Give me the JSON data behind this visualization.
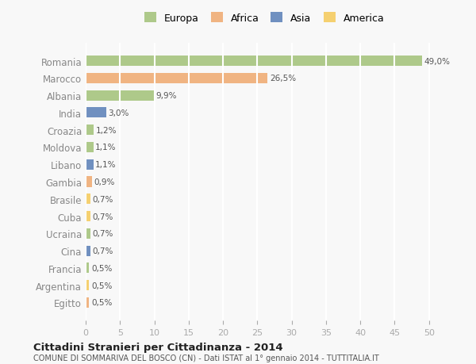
{
  "countries": [
    "Romania",
    "Marocco",
    "Albania",
    "India",
    "Croazia",
    "Moldova",
    "Libano",
    "Gambia",
    "Brasile",
    "Cuba",
    "Ucraina",
    "Cina",
    "Francia",
    "Argentina",
    "Egitto"
  ],
  "values": [
    49.0,
    26.5,
    9.9,
    3.0,
    1.2,
    1.1,
    1.1,
    0.9,
    0.7,
    0.7,
    0.7,
    0.7,
    0.5,
    0.5,
    0.5
  ],
  "labels": [
    "49,0%",
    "26,5%",
    "9,9%",
    "3,0%",
    "1,2%",
    "1,1%",
    "1,1%",
    "0,9%",
    "0,7%",
    "0,7%",
    "0,7%",
    "0,7%",
    "0,5%",
    "0,5%",
    "0,5%"
  ],
  "colors": [
    "#aec98a",
    "#f0b482",
    "#aec98a",
    "#7090c0",
    "#aec98a",
    "#aec98a",
    "#7090c0",
    "#f0b482",
    "#f5d070",
    "#f5d070",
    "#aec98a",
    "#7090c0",
    "#aec98a",
    "#f5d070",
    "#f0b482"
  ],
  "categories": [
    "Europa",
    "Africa",
    "Asia",
    "America"
  ],
  "legend_colors": [
    "#aec98a",
    "#f0b482",
    "#7090c0",
    "#f5d070"
  ],
  "title": "Cittadini Stranieri per Cittadinanza - 2014",
  "subtitle": "COMUNE DI SOMMARIVA DEL BOSCO (CN) - Dati ISTAT al 1° gennaio 2014 - TUTTITALIA.IT",
  "xlim": [
    0,
    52
  ],
  "xticks": [
    0,
    5,
    10,
    15,
    20,
    25,
    30,
    35,
    40,
    45,
    50
  ],
  "background_color": "#f8f8f8",
  "grid_color": "#ffffff",
  "bar_height": 0.6
}
